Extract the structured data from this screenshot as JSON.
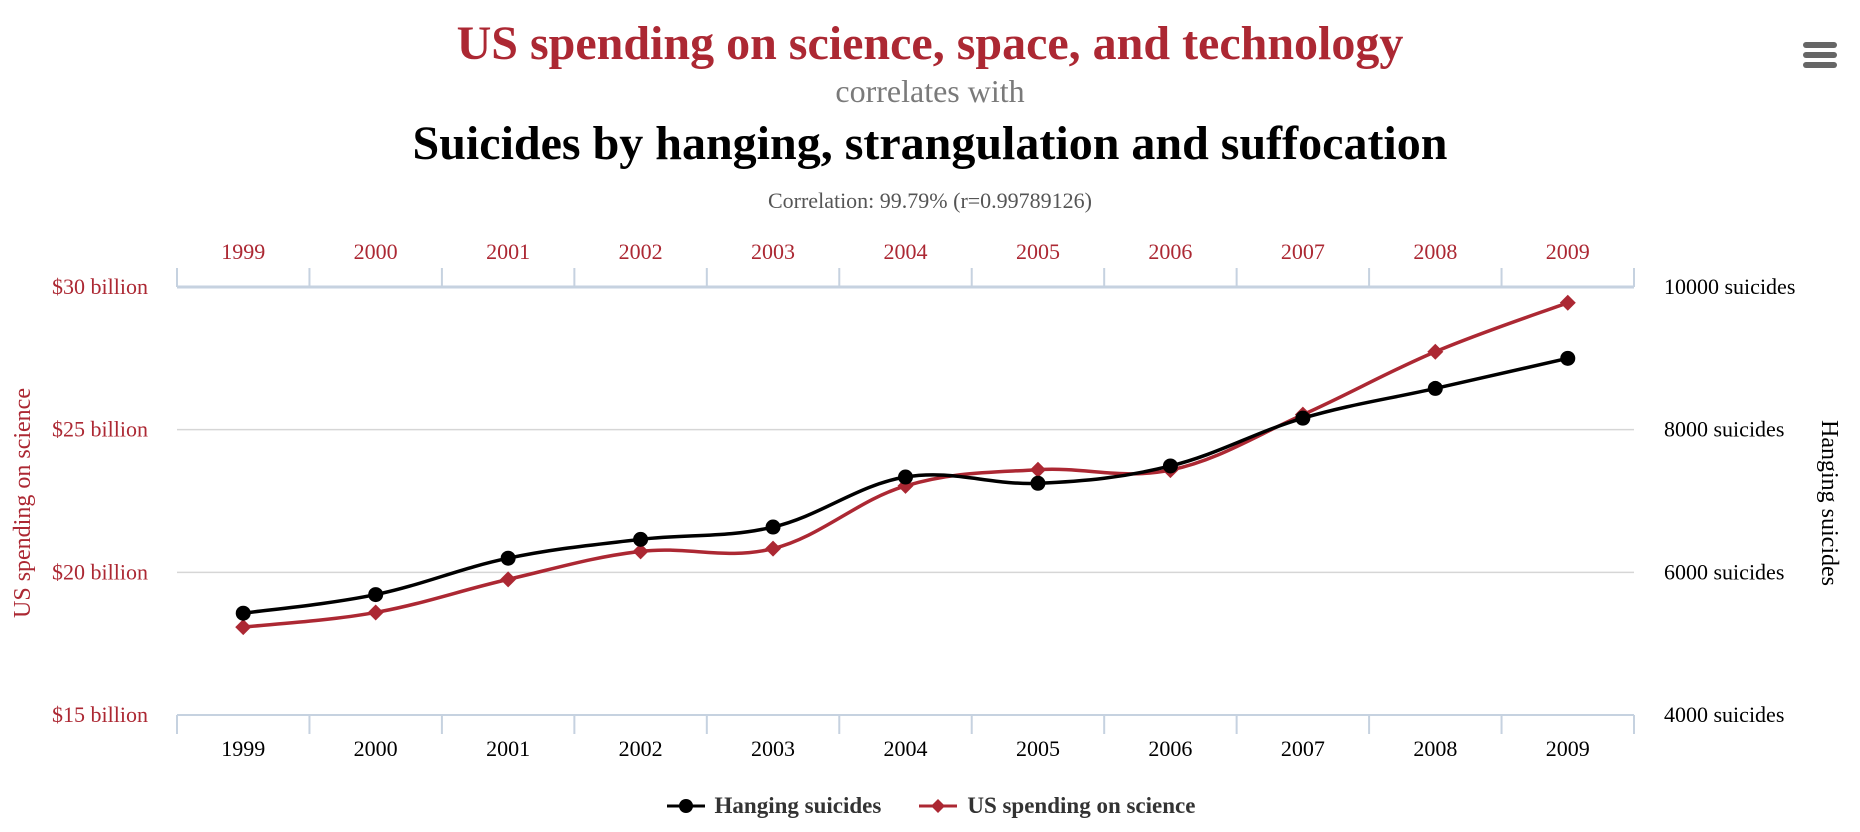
{
  "header": {
    "title": "US spending on science, space, and technology",
    "connector": "correlates with",
    "subtitle": "Suicides by hanging, strangulation and suffocation",
    "correlation": "Correlation: 99.79% (r=0.99789126)"
  },
  "menu": {
    "icon": "hamburger-menu-icon"
  },
  "colors": {
    "spending": "#ac2833",
    "suicides": "#000000",
    "grid": "#d6d6d6",
    "axis": "#c6d2e0"
  },
  "chart_data": {
    "type": "line",
    "title": "US spending on science, space, and technology correlates with Suicides by hanging, strangulation and suffocation",
    "subtitle": "Correlation: 99.79% (r=0.99789126)",
    "x": [
      "1999",
      "2000",
      "2001",
      "2002",
      "2003",
      "2004",
      "2005",
      "2006",
      "2007",
      "2008",
      "2009"
    ],
    "x_top_labels": [
      "1999",
      "2000",
      "2001",
      "2002",
      "2003",
      "2004",
      "2005",
      "2006",
      "2007",
      "2008",
      "2009"
    ],
    "series": [
      {
        "name": "Hanging suicides",
        "axis": "right",
        "marker": "circle",
        "color": "#000000",
        "values": [
          5427,
          5688,
          6198,
          6462,
          6635,
          7336,
          7248,
          7491,
          8161,
          8578,
          9000
        ]
      },
      {
        "name": "US spending on science",
        "axis": "left",
        "marker": "diamond",
        "color": "#ac2833",
        "values": [
          18.079,
          18.594,
          19.753,
          20.734,
          20.831,
          23.029,
          23.597,
          23.584,
          25.525,
          27.731,
          29.449
        ]
      }
    ],
    "y_left": {
      "label": "US spending on science",
      "range": [
        15,
        30
      ],
      "ticks": [
        30,
        25,
        20,
        15
      ],
      "tick_labels": [
        "$30 billion",
        "$25 billion",
        "$20 billion",
        "$15 billion"
      ]
    },
    "y_right": {
      "label": "Hanging suicides",
      "range": [
        4000,
        10000
      ],
      "ticks": [
        10000,
        8000,
        6000,
        4000
      ],
      "tick_labels": [
        "10000 suicides",
        "8000 suicides",
        "6000 suicides",
        "4000 suicides"
      ]
    },
    "grid": true,
    "legend": {
      "position": "bottom",
      "entries": [
        "Hanging suicides",
        "US spending on science"
      ]
    }
  }
}
